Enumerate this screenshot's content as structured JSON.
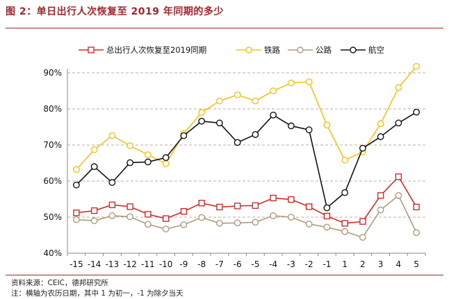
{
  "figure": {
    "title": "图 2：单日出行人次恢复至 2019 年同期的多少",
    "source": "资料来源：CEIC，德邦研究所",
    "note": "注：横轴为农历日期，其中 1 为初一，-1 为除夕当天"
  },
  "colors": {
    "accent": "#a6252b",
    "grid": "#c8a99f",
    "axis": "#888888"
  },
  "chart_data": {
    "type": "line",
    "title": "",
    "xlabel": "",
    "ylabel": "",
    "x": [
      "-15",
      "-14",
      "-13",
      "-12",
      "-11",
      "-10",
      "-9",
      "-8",
      "-7",
      "-6",
      "-5",
      "-4",
      "-3",
      "-2",
      "-1",
      "1",
      "2",
      "3",
      "4",
      "5"
    ],
    "ylim": [
      40,
      90
    ],
    "yticks": [
      40,
      50,
      60,
      70,
      80,
      90
    ],
    "ytick_labels": [
      "40%",
      "50%",
      "60%",
      "70%",
      "80%",
      "90%"
    ],
    "y_unit": "%",
    "grid": "horizontal dashed",
    "legend_position": "top",
    "series": [
      {
        "name": "总出行人次恢复至2019同期",
        "color": "#d62a2a",
        "marker": "square",
        "values": [
          51.2,
          51.8,
          53.4,
          52.9,
          50.8,
          49.6,
          51.6,
          53.9,
          52.8,
          53.1,
          53.2,
          55.3,
          54.9,
          52.9,
          50.3,
          48.3,
          48.8,
          56.0,
          61.2,
          52.8
        ]
      },
      {
        "name": "铁路",
        "color": "#f6c21a",
        "marker": "circle",
        "values": [
          63.2,
          68.7,
          72.6,
          69.8,
          67.3,
          64.8,
          73.2,
          79.0,
          82.2,
          83.9,
          82.2,
          85.0,
          87.2,
          87.5,
          75.5,
          65.8,
          68.1,
          75.9,
          85.9,
          91.8
        ]
      },
      {
        "name": "公路",
        "color": "#b09a7d",
        "marker": "circle",
        "values": [
          49.3,
          49.0,
          50.4,
          50.1,
          48.0,
          46.7,
          47.9,
          49.9,
          48.3,
          48.4,
          48.6,
          50.4,
          50.0,
          48.1,
          47.2,
          46.0,
          44.4,
          52.0,
          56.0,
          45.7
        ]
      },
      {
        "name": "航空",
        "color": "#111111",
        "marker": "circle",
        "values": [
          58.9,
          64.0,
          59.6,
          65.1,
          65.3,
          66.5,
          72.6,
          76.6,
          76.1,
          70.7,
          72.9,
          78.3,
          75.3,
          74.2,
          52.6,
          56.8,
          69.1,
          72.3,
          76.1,
          79.1
        ]
      }
    ]
  }
}
